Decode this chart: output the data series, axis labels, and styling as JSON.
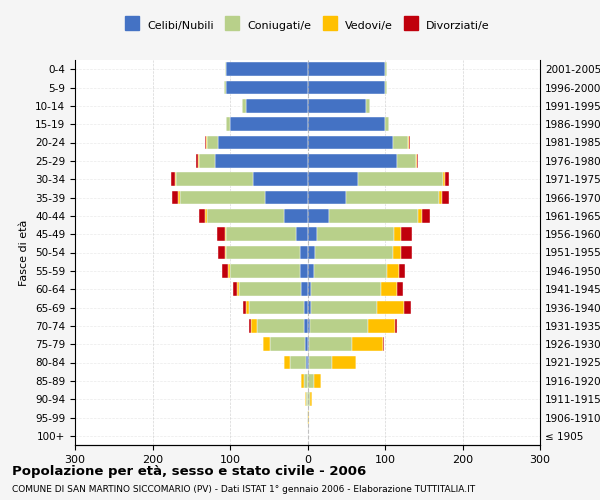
{
  "age_groups": [
    "100+",
    "95-99",
    "90-94",
    "85-89",
    "80-84",
    "75-79",
    "70-74",
    "65-69",
    "60-64",
    "55-59",
    "50-54",
    "45-49",
    "40-44",
    "35-39",
    "30-34",
    "25-29",
    "20-24",
    "15-19",
    "10-14",
    "5-9",
    "0-4"
  ],
  "birth_years": [
    "≤ 1905",
    "1906-1910",
    "1911-1915",
    "1916-1920",
    "1921-1925",
    "1926-1930",
    "1931-1935",
    "1936-1940",
    "1941-1945",
    "1946-1950",
    "1951-1955",
    "1956-1960",
    "1961-1965",
    "1966-1970",
    "1971-1975",
    "1976-1980",
    "1981-1985",
    "1986-1990",
    "1991-1995",
    "1996-2000",
    "2001-2005"
  ],
  "males": {
    "celibi": [
      0,
      0,
      0,
      0,
      2,
      3,
      5,
      5,
      8,
      10,
      10,
      15,
      30,
      55,
      70,
      120,
      115,
      100,
      80,
      105,
      105
    ],
    "coniugati": [
      0,
      1,
      2,
      5,
      20,
      45,
      60,
      70,
      80,
      90,
      95,
      90,
      100,
      110,
      100,
      20,
      15,
      5,
      5,
      3,
      2
    ],
    "vedovi": [
      0,
      0,
      1,
      3,
      8,
      10,
      8,
      5,
      3,
      2,
      2,
      2,
      2,
      2,
      1,
      1,
      1,
      0,
      0,
      0,
      0
    ],
    "divorziati": [
      0,
      0,
      0,
      0,
      0,
      0,
      2,
      3,
      5,
      8,
      8,
      10,
      8,
      8,
      5,
      3,
      1,
      0,
      0,
      0,
      0
    ]
  },
  "females": {
    "nubili": [
      0,
      0,
      0,
      0,
      2,
      2,
      3,
      5,
      5,
      8,
      10,
      12,
      28,
      50,
      65,
      115,
      110,
      100,
      75,
      100,
      100
    ],
    "coniugate": [
      0,
      1,
      3,
      8,
      30,
      55,
      75,
      85,
      90,
      95,
      100,
      100,
      115,
      120,
      110,
      25,
      20,
      5,
      5,
      3,
      2
    ],
    "vedove": [
      0,
      1,
      3,
      10,
      30,
      40,
      35,
      35,
      20,
      15,
      10,
      8,
      5,
      3,
      2,
      1,
      1,
      0,
      0,
      0,
      0
    ],
    "divorziate": [
      0,
      0,
      0,
      0,
      0,
      2,
      3,
      8,
      8,
      8,
      15,
      15,
      10,
      10,
      5,
      2,
      1,
      0,
      0,
      0,
      0
    ]
  },
  "colors": {
    "celibi": "#4472c4",
    "coniugati": "#b8d08a",
    "vedovi": "#ffc000",
    "divorziati": "#c0000c"
  },
  "title": "Popolazione per età, sesso e stato civile - 2006",
  "subtitle": "COMUNE DI SAN MARTINO SICCOMARIO (PV) - Dati ISTAT 1° gennaio 2006 - Elaborazione TUTTITALIA.IT",
  "ylabel_left": "Fasce di età",
  "xlim": 300,
  "legend_labels": [
    "Celibi/Nubili",
    "Coniugati/e",
    "Vedovi/e",
    "Divorziati/e"
  ],
  "bg_color": "#f5f5f5",
  "plot_bg": "#ffffff",
  "grid_color": "#cccccc"
}
